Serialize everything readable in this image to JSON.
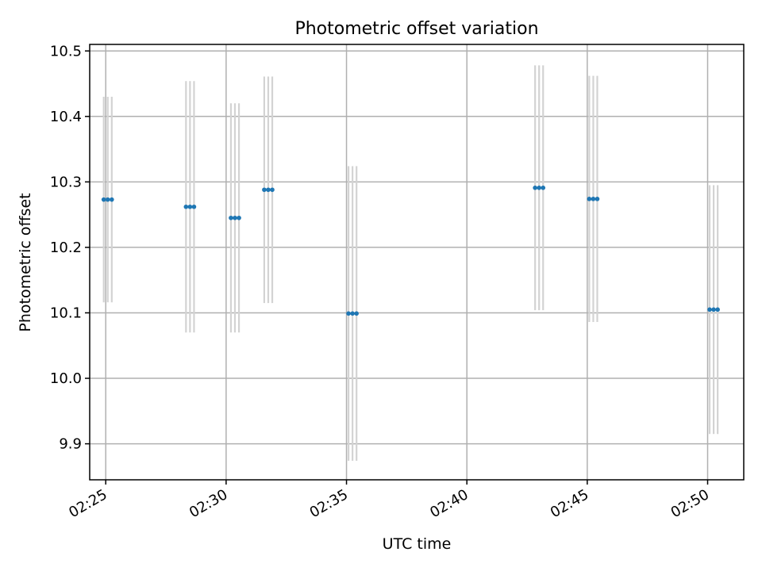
{
  "chart_data": {
    "type": "scatter",
    "title": "Photometric offset variation",
    "xlabel": "UTC time",
    "ylabel": "Photometric offset",
    "x_ticks": [
      "02:25",
      "02:30",
      "02:35",
      "02:40",
      "02:45",
      "02:50"
    ],
    "y_ticks": [
      "9.9",
      "10.0",
      "10.1",
      "10.2",
      "10.3",
      "10.4",
      "10.5"
    ],
    "xlim": [
      "02:24:20",
      "02:51:30"
    ],
    "ylim": [
      9.845,
      10.51
    ],
    "grid": true,
    "series": [
      {
        "color": "#1f77b4",
        "error_color": "#d3d3d3",
        "points": [
          {
            "x": "02:24:55",
            "y": 10.273,
            "yerr": 0.157
          },
          {
            "x": "02:25:05",
            "y": 10.273,
            "yerr": 0.157
          },
          {
            "x": "02:25:15",
            "y": 10.273,
            "yerr": 0.157
          },
          {
            "x": "02:28:20",
            "y": 10.262,
            "yerr": 0.192
          },
          {
            "x": "02:28:30",
            "y": 10.262,
            "yerr": 0.192
          },
          {
            "x": "02:28:40",
            "y": 10.262,
            "yerr": 0.192
          },
          {
            "x": "02:30:12",
            "y": 10.245,
            "yerr": 0.175
          },
          {
            "x": "02:30:22",
            "y": 10.245,
            "yerr": 0.175
          },
          {
            "x": "02:30:32",
            "y": 10.245,
            "yerr": 0.175
          },
          {
            "x": "02:31:35",
            "y": 10.288,
            "yerr": 0.173
          },
          {
            "x": "02:31:45",
            "y": 10.288,
            "yerr": 0.173
          },
          {
            "x": "02:31:55",
            "y": 10.288,
            "yerr": 0.173
          },
          {
            "x": "02:35:05",
            "y": 10.099,
            "yerr": 0.225
          },
          {
            "x": "02:35:15",
            "y": 10.099,
            "yerr": 0.225
          },
          {
            "x": "02:35:25",
            "y": 10.099,
            "yerr": 0.225
          },
          {
            "x": "02:42:50",
            "y": 10.291,
            "yerr": 0.187
          },
          {
            "x": "02:43:00",
            "y": 10.291,
            "yerr": 0.187
          },
          {
            "x": "02:43:10",
            "y": 10.291,
            "yerr": 0.187
          },
          {
            "x": "02:45:05",
            "y": 10.274,
            "yerr": 0.188
          },
          {
            "x": "02:45:15",
            "y": 10.274,
            "yerr": 0.188
          },
          {
            "x": "02:45:25",
            "y": 10.274,
            "yerr": 0.188
          },
          {
            "x": "02:50:05",
            "y": 10.105,
            "yerr": 0.19
          },
          {
            "x": "02:50:15",
            "y": 10.105,
            "yerr": 0.19
          },
          {
            "x": "02:50:25",
            "y": 10.105,
            "yerr": 0.19
          }
        ]
      }
    ]
  }
}
